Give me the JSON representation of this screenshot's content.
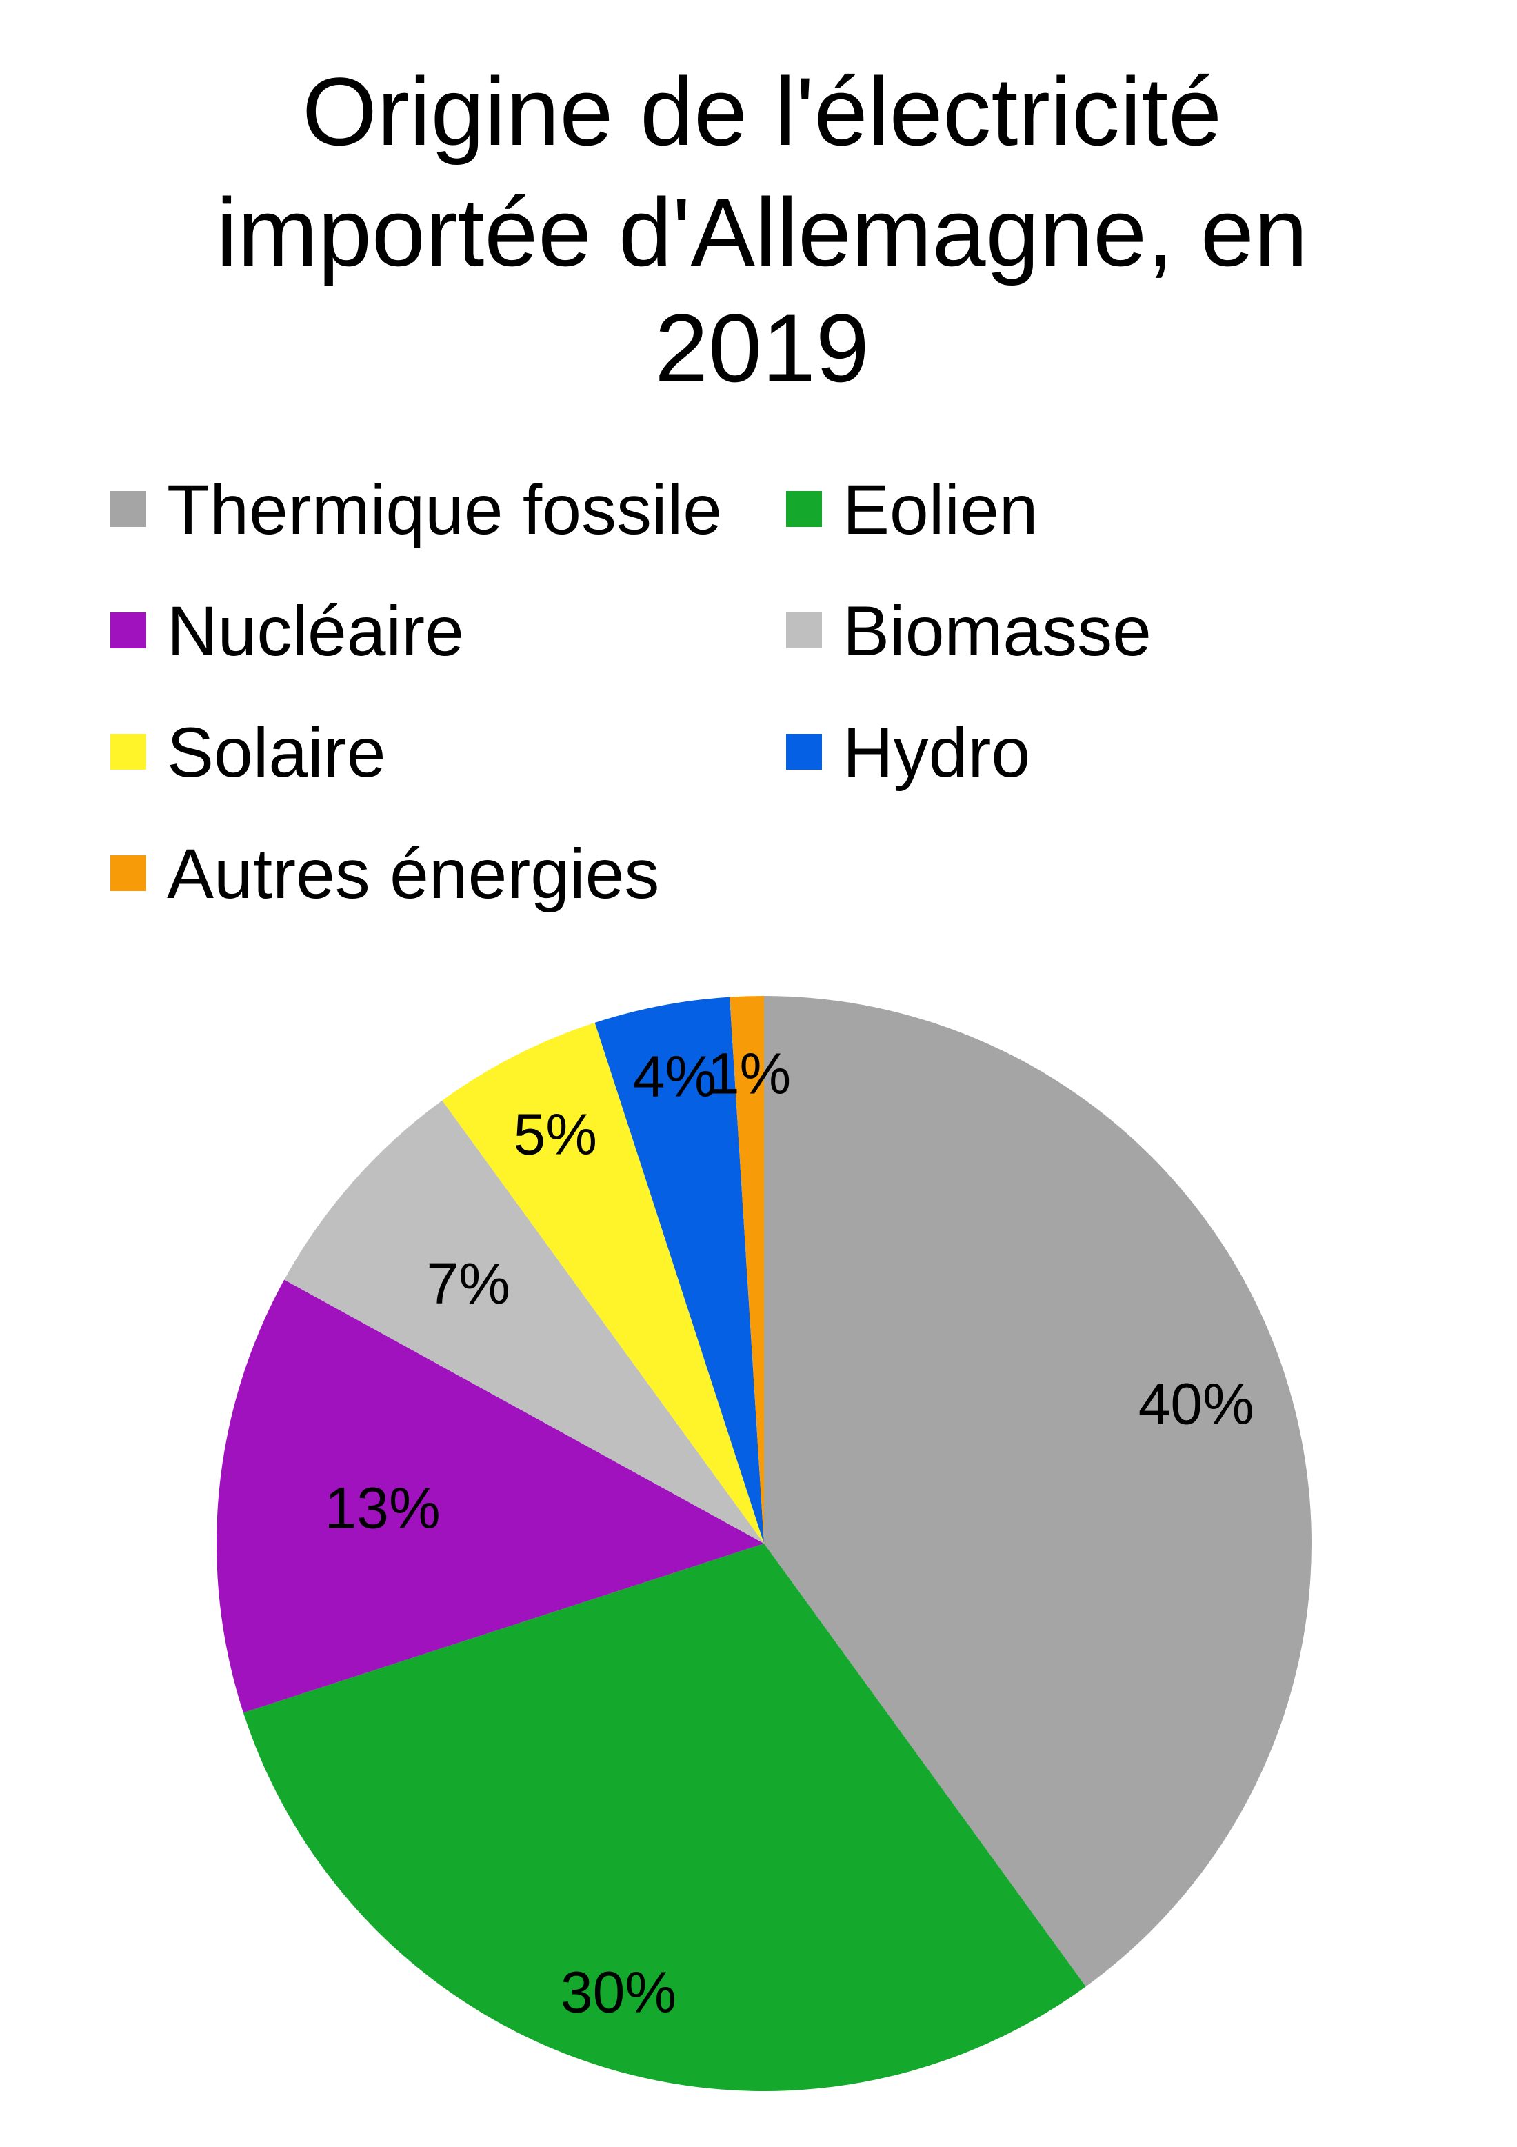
{
  "chart_data": {
    "type": "pie",
    "title_lines": [
      "Origine de l'électricité",
      "importée d'Allemagne, en",
      "2019"
    ],
    "legend_position": "top",
    "slices": [
      {
        "name": "Thermique fossile",
        "value": 40,
        "label": "40%",
        "color": "#A5A5A5"
      },
      {
        "name": "Eolien",
        "value": 30,
        "label": "30%",
        "color": "#14A82C"
      },
      {
        "name": "Nucléaire",
        "value": 13,
        "label": "13%",
        "color": "#A012BE"
      },
      {
        "name": "Biomasse",
        "value": 7,
        "label": "7%",
        "color": "#BFBFBF"
      },
      {
        "name": "Solaire",
        "value": 5,
        "label": "5%",
        "color": "#FFF42A"
      },
      {
        "name": "Hydro",
        "value": 4,
        "label": "4%",
        "color": "#0560E4"
      },
      {
        "name": "Autres énergies",
        "value": 1,
        "label": "1%",
        "color": "#F89B08"
      }
    ]
  }
}
